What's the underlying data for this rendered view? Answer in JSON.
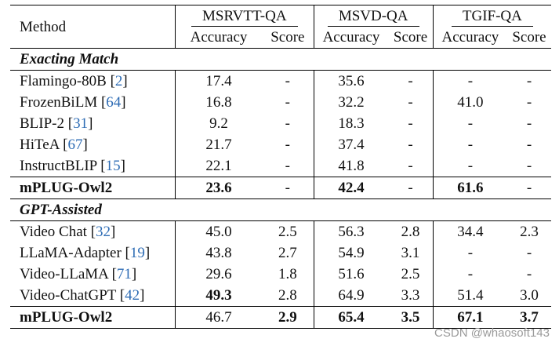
{
  "table": {
    "header": {
      "method": "Method",
      "groups": [
        "MSRVTT-QA",
        "MSVD-QA",
        "TGIF-QA"
      ],
      "sub": [
        "Accuracy",
        "Score"
      ]
    },
    "sections": [
      {
        "title": "Exacting Match",
        "rows": [
          {
            "name": "Flamingo-80B",
            "cite": "2",
            "cells": [
              "17.4",
              "-",
              "35.6",
              "-",
              "-",
              "-"
            ],
            "bold": [
              false,
              false,
              false,
              false,
              false,
              false
            ]
          },
          {
            "name": "FrozenBiLM",
            "cite": "64",
            "cells": [
              "16.8",
              "-",
              "32.2",
              "-",
              "41.0",
              "-"
            ],
            "bold": [
              false,
              false,
              false,
              false,
              false,
              false
            ]
          },
          {
            "name": "BLIP-2",
            "cite": "31",
            "cells": [
              "9.2",
              "-",
              "18.3",
              "-",
              "-",
              "-"
            ],
            "bold": [
              false,
              false,
              false,
              false,
              false,
              false
            ]
          },
          {
            "name": "HiTeA",
            "cite": "67",
            "cells": [
              "21.7",
              "-",
              "37.4",
              "-",
              "-",
              "-"
            ],
            "bold": [
              false,
              false,
              false,
              false,
              false,
              false
            ]
          },
          {
            "name": "InstructBLIP",
            "cite": "15",
            "cells": [
              "22.1",
              "-",
              "41.8",
              "-",
              "-",
              "-"
            ],
            "bold": [
              false,
              false,
              false,
              false,
              false,
              false
            ]
          }
        ],
        "final": {
          "name": "mPLUG-Owl2",
          "cells": [
            "23.6",
            "-",
            "42.4",
            "-",
            "61.6",
            "-"
          ],
          "bold": [
            true,
            false,
            true,
            false,
            true,
            false
          ]
        }
      },
      {
        "title": "GPT-Assisted",
        "rows": [
          {
            "name": "Video Chat",
            "cite": "32",
            "cells": [
              "45.0",
              "2.5",
              "56.3",
              "2.8",
              "34.4",
              "2.3"
            ],
            "bold": [
              false,
              false,
              false,
              false,
              false,
              false
            ]
          },
          {
            "name": "LLaMA-Adapter",
            "cite": "19",
            "cells": [
              "43.8",
              "2.7",
              "54.9",
              "3.1",
              "-",
              "-"
            ],
            "bold": [
              false,
              false,
              false,
              false,
              false,
              false
            ]
          },
          {
            "name": "Video-LLaMA",
            "cite": "71",
            "cells": [
              "29.6",
              "1.8",
              "51.6",
              "2.5",
              "-",
              "-"
            ],
            "bold": [
              false,
              false,
              false,
              false,
              false,
              false
            ]
          },
          {
            "name": "Video-ChatGPT",
            "cite": "42",
            "cells": [
              "49.3",
              "2.8",
              "64.9",
              "3.3",
              "51.4",
              "3.0"
            ],
            "bold": [
              true,
              false,
              false,
              false,
              false,
              false
            ]
          }
        ],
        "final": {
          "name": "mPLUG-Owl2",
          "cells": [
            "46.7",
            "2.9",
            "65.4",
            "3.5",
            "67.1",
            "3.7"
          ],
          "bold": [
            false,
            true,
            true,
            true,
            true,
            true
          ]
        }
      }
    ]
  },
  "watermark": "CSDN @whaosoft143"
}
